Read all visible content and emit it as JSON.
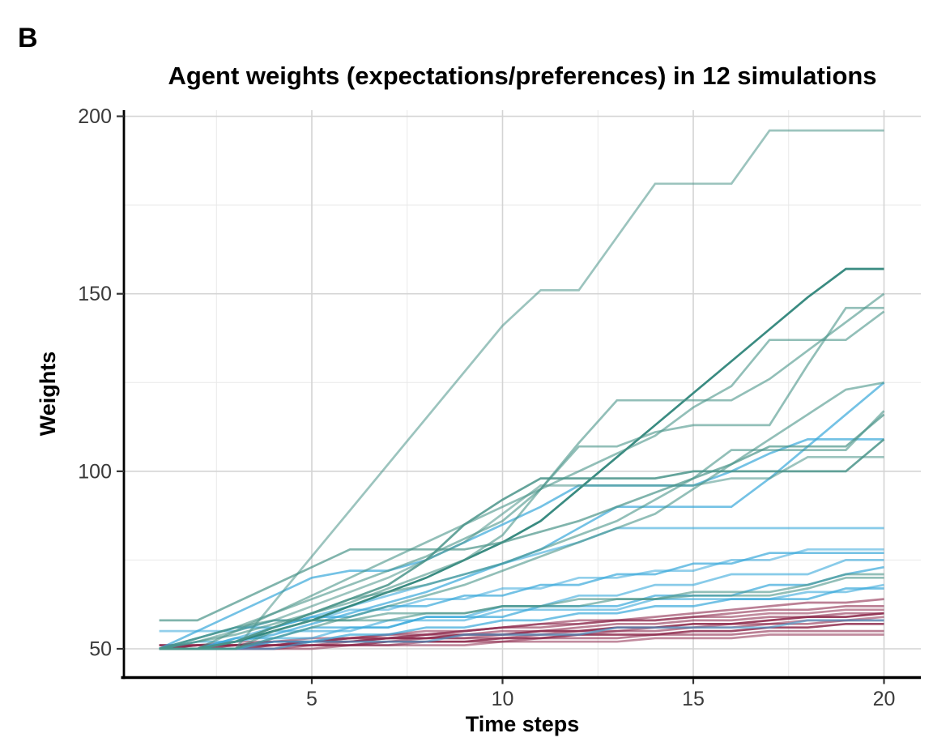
{
  "panel_label": "B",
  "chart_data": {
    "type": "line",
    "title": "Agent weights (expectations/preferences) in 12 simulations",
    "xlabel": "Time steps",
    "ylabel": "Weights",
    "legend": "none",
    "grid": "major+minor",
    "x": [
      1,
      2,
      3,
      4,
      5,
      6,
      7,
      8,
      9,
      10,
      11,
      12,
      13,
      14,
      15,
      16,
      17,
      18,
      19,
      20
    ],
    "x_ticks": [
      5,
      10,
      15,
      20
    ],
    "x_minor_ticks": [
      2.5,
      7.5,
      12.5,
      17.5
    ],
    "y_ticks": [
      50,
      100,
      150,
      200
    ],
    "y_minor_ticks": [
      75,
      125,
      175
    ],
    "xlim": [
      0.05,
      20.95
    ],
    "ylim": [
      42,
      202
    ],
    "colors": {
      "teal": "#4a9489",
      "teal_dark": "#2f857a",
      "blue": "#39a8da",
      "maroon": "#8e2c4e",
      "grid_major": "#d4d4d4",
      "grid_minor": "#e9e9e9",
      "axis_line": "#000000",
      "tick_text": "#3a3a3a"
    },
    "series": [
      {
        "name": "teal-1",
        "group": "teal",
        "alpha": 0.55,
        "values": [
          50,
          50,
          50,
          63,
          76,
          89,
          102,
          115,
          128,
          141,
          151,
          151,
          166,
          181,
          181,
          181,
          196,
          196,
          196,
          196
        ]
      },
      {
        "name": "teal-2",
        "group": "teal_dark",
        "alpha": 0.95,
        "values": [
          50,
          50,
          52,
          55,
          58,
          62,
          66,
          70,
          75,
          80,
          86,
          95,
          104,
          113,
          122,
          131,
          140,
          149,
          157,
          157
        ]
      },
      {
        "name": "teal-3",
        "group": "teal",
        "alpha": 0.6,
        "values": [
          50,
          52,
          54,
          57,
          60,
          63,
          67,
          71,
          75,
          82,
          95,
          108,
          120,
          120,
          120,
          120,
          126,
          134,
          142,
          150
        ]
      },
      {
        "name": "teal-4",
        "group": "teal",
        "alpha": 0.6,
        "values": [
          50,
          53,
          56,
          60,
          64,
          68,
          72,
          76,
          81,
          86,
          95,
          107,
          107,
          111,
          113,
          113,
          113,
          130,
          146,
          146
        ]
      },
      {
        "name": "teal-5",
        "group": "teal",
        "alpha": 0.6,
        "values": [
          50,
          50,
          55,
          60,
          65,
          70,
          75,
          80,
          85,
          90,
          95,
          100,
          105,
          110,
          118,
          124,
          137,
          137,
          137,
          145
        ]
      },
      {
        "name": "teal-6",
        "group": "teal",
        "alpha": 0.6,
        "values": [
          50,
          50,
          50,
          53,
          56,
          59,
          62,
          65,
          68,
          72,
          76,
          80,
          84,
          88,
          95,
          102,
          109,
          116,
          123,
          125
        ]
      },
      {
        "name": "teal-7",
        "group": "teal",
        "alpha": 0.6,
        "values": [
          50,
          50,
          52,
          56,
          60,
          64,
          66,
          68,
          71,
          74,
          78,
          82,
          86,
          92,
          98,
          106,
          106,
          106,
          106,
          117
        ]
      },
      {
        "name": "teal-8",
        "group": "teal",
        "alpha": 0.7,
        "values": [
          58,
          58,
          63,
          68,
          73,
          78,
          78,
          78,
          78,
          80,
          83,
          86,
          90,
          94,
          98,
          102,
          107,
          107,
          107,
          116
        ]
      },
      {
        "name": "teal-9",
        "group": "teal",
        "alpha": 0.85,
        "values": [
          50,
          50,
          52,
          56,
          60,
          64,
          68,
          75,
          85,
          92,
          98,
          98,
          98,
          98,
          100,
          100,
          100,
          100,
          100,
          109
        ]
      },
      {
        "name": "teal-10",
        "group": "teal",
        "alpha": 0.55,
        "values": [
          50,
          52,
          55,
          58,
          62,
          66,
          70,
          75,
          80,
          88,
          96,
          96,
          96,
          96,
          96,
          98,
          98,
          104,
          104,
          104
        ]
      },
      {
        "name": "teal-11",
        "group": "teal",
        "alpha": 0.6,
        "values": [
          50,
          50,
          50,
          55,
          58,
          58,
          58,
          60,
          60,
          62,
          62,
          62,
          64,
          64,
          66,
          66,
          66,
          68,
          71,
          71
        ]
      },
      {
        "name": "teal-12",
        "group": "teal",
        "alpha": 0.6,
        "values": [
          50,
          53,
          56,
          58,
          58,
          58,
          60,
          60,
          60,
          62,
          62,
          64,
          64,
          64,
          65,
          65,
          65,
          67,
          70,
          70
        ]
      },
      {
        "name": "blue-1",
        "group": "blue",
        "alpha": 0.7,
        "values": [
          50,
          50,
          52,
          54,
          57,
          60,
          63,
          66,
          70,
          74,
          78,
          84,
          90,
          90,
          90,
          90,
          98,
          107,
          116,
          125
        ]
      },
      {
        "name": "blue-2",
        "group": "blue",
        "alpha": 0.7,
        "values": [
          50,
          55,
          60,
          65,
          70,
          72,
          72,
          75,
          80,
          85,
          90,
          96,
          96,
          96,
          96,
          100,
          105,
          109,
          109,
          109
        ]
      },
      {
        "name": "blue-3",
        "group": "blue",
        "alpha": 0.6,
        "values": [
          50,
          50,
          53,
          56,
          59,
          62,
          65,
          68,
          71,
          74,
          77,
          80,
          84,
          84,
          84,
          84,
          84,
          84,
          84,
          84
        ]
      },
      {
        "name": "blue-4",
        "group": "blue",
        "alpha": 0.55,
        "values": [
          55,
          55,
          55,
          58,
          58,
          61,
          61,
          64,
          64,
          67,
          67,
          70,
          70,
          72,
          72,
          75,
          75,
          78,
          78,
          78
        ]
      },
      {
        "name": "blue-5",
        "group": "blue",
        "alpha": 0.7,
        "values": [
          50,
          53,
          56,
          56,
          59,
          59,
          62,
          62,
          65,
          65,
          68,
          68,
          71,
          71,
          74,
          74,
          77,
          77,
          77,
          77
        ]
      },
      {
        "name": "blue-6",
        "group": "blue",
        "alpha": 0.6,
        "values": [
          50,
          50,
          50,
          53,
          53,
          56,
          56,
          59,
          59,
          62,
          62,
          65,
          65,
          68,
          68,
          71,
          71,
          71,
          75,
          75
        ]
      },
      {
        "name": "blue-7",
        "group": "blue",
        "alpha": 0.7,
        "values": [
          50,
          50,
          53,
          53,
          56,
          56,
          56,
          59,
          59,
          59,
          62,
          62,
          62,
          65,
          65,
          65,
          68,
          68,
          71,
          73
        ]
      },
      {
        "name": "blue-8",
        "group": "blue",
        "alpha": 0.6,
        "values": [
          50,
          52,
          52,
          55,
          55,
          55,
          58,
          58,
          58,
          61,
          61,
          61,
          61,
          64,
          64,
          64,
          64,
          66,
          66,
          68
        ]
      },
      {
        "name": "blue-9",
        "group": "blue",
        "alpha": 0.7,
        "values": [
          50,
          50,
          50,
          52,
          52,
          54,
          54,
          56,
          56,
          58,
          58,
          60,
          60,
          62,
          62,
          64,
          64,
          64,
          67,
          67
        ]
      },
      {
        "name": "blue-10",
        "group": "blue",
        "alpha": 0.55,
        "values": [
          50,
          50,
          50,
          50,
          52,
          52,
          52,
          52,
          54,
          54,
          54,
          54,
          56,
          56,
          56,
          56,
          56,
          58,
          58,
          58
        ]
      },
      {
        "name": "maroon-1",
        "group": "maroon",
        "alpha": 0.6,
        "values": [
          51,
          51,
          51,
          52,
          52,
          53,
          53,
          54,
          55,
          56,
          57,
          58,
          58,
          59,
          60,
          61,
          62,
          63,
          63,
          64
        ]
      },
      {
        "name": "maroon-2",
        "group": "maroon",
        "alpha": 0.6,
        "values": [
          50,
          51,
          51,
          52,
          52,
          53,
          54,
          54,
          55,
          56,
          56,
          57,
          58,
          58,
          59,
          60,
          61,
          61,
          62,
          62
        ]
      },
      {
        "name": "maroon-3",
        "group": "maroon",
        "alpha": 0.55,
        "values": [
          51,
          51,
          52,
          52,
          53,
          53,
          54,
          55,
          55,
          56,
          57,
          57,
          58,
          58,
          59,
          59,
          60,
          60,
          61,
          61
        ]
      },
      {
        "name": "maroon-4",
        "group": "maroon",
        "alpha": 0.6,
        "values": [
          50,
          50,
          51,
          51,
          52,
          53,
          53,
          54,
          54,
          55,
          55,
          56,
          57,
          57,
          58,
          58,
          59,
          59,
          60,
          60
        ]
      },
      {
        "name": "maroon-5",
        "group": "maroon",
        "alpha": 0.9,
        "values": [
          50,
          51,
          51,
          51,
          52,
          52,
          53,
          53,
          54,
          54,
          55,
          55,
          56,
          56,
          57,
          57,
          58,
          59,
          59,
          60
        ]
      },
      {
        "name": "maroon-6",
        "group": "maroon",
        "alpha": 0.55,
        "values": [
          51,
          51,
          51,
          52,
          52,
          52,
          53,
          53,
          53,
          54,
          54,
          55,
          55,
          56,
          56,
          57,
          57,
          58,
          58,
          59
        ]
      },
      {
        "name": "maroon-7",
        "group": "maroon",
        "alpha": 0.6,
        "values": [
          50,
          50,
          51,
          51,
          51,
          52,
          52,
          53,
          53,
          53,
          54,
          54,
          55,
          55,
          56,
          56,
          57,
          57,
          58,
          58
        ]
      },
      {
        "name": "maroon-8",
        "group": "maroon",
        "alpha": 0.85,
        "values": [
          50,
          50,
          50,
          51,
          51,
          51,
          52,
          52,
          52,
          53,
          53,
          54,
          54,
          54,
          55,
          55,
          56,
          56,
          57,
          57
        ]
      },
      {
        "name": "maroon-9",
        "group": "maroon",
        "alpha": 0.6,
        "values": [
          50,
          50,
          50,
          50,
          51,
          51,
          51,
          52,
          52,
          52,
          53,
          53,
          53,
          54,
          54,
          54,
          55,
          55,
          55,
          55
        ]
      },
      {
        "name": "maroon-10",
        "group": "maroon",
        "alpha": 0.55,
        "values": [
          50,
          50,
          50,
          50,
          50,
          51,
          51,
          51,
          51,
          52,
          52,
          52,
          52,
          53,
          53,
          53,
          54,
          54,
          54,
          54
        ]
      }
    ]
  },
  "layout_text": {
    "y_tick_labels": [
      "50",
      "100",
      "150",
      "200"
    ],
    "x_tick_labels": [
      "5",
      "10",
      "15",
      "20"
    ]
  }
}
